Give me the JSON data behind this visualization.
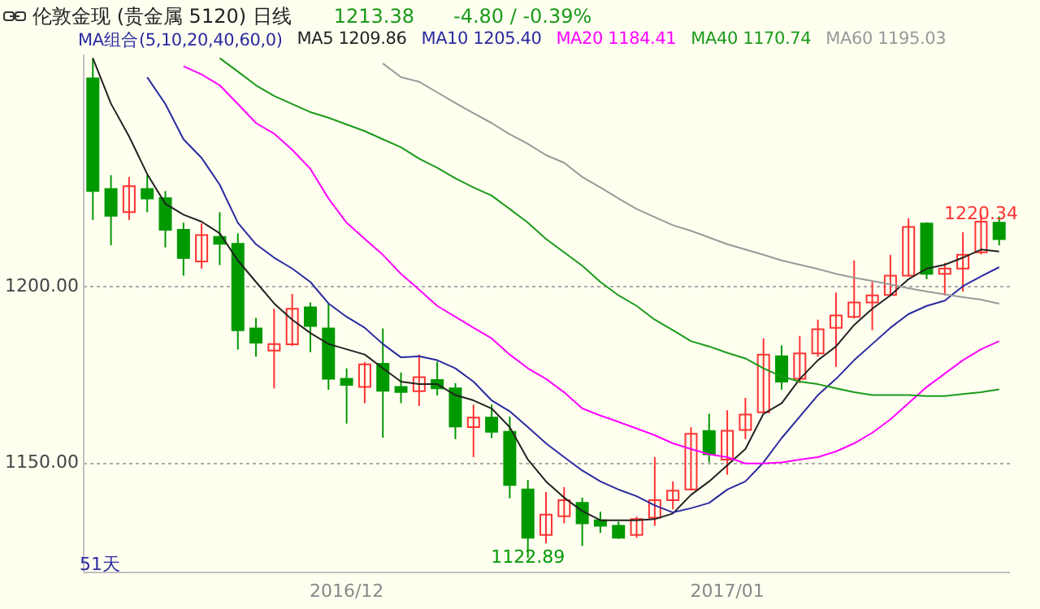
{
  "chart_data": {
    "type": "candlestick",
    "title": "伦敦金现 (贵金属 5120) 日线",
    "annotations": [
      "1213.38",
      "-4.80 / -0.39%",
      "MA组合(5,10,20,40,60,0)",
      "51天",
      {
        "text": "1122.89",
        "y": 1122.89
      },
      {
        "text": "1220.34",
        "y": 1220.34
      }
    ],
    "categories": [
      null,
      null,
      null,
      null,
      null,
      null,
      null,
      null,
      null,
      null,
      null,
      null,
      null,
      null,
      "2016/12",
      null,
      null,
      null,
      null,
      null,
      null,
      null,
      null,
      null,
      null,
      null,
      null,
      null,
      null,
      null,
      null,
      null,
      null,
      null,
      null,
      "2017/01",
      null,
      null,
      null,
      null,
      null,
      null,
      null,
      null,
      null,
      null,
      null,
      null,
      null,
      null,
      null
    ],
    "ohlc": [
      [
        1259,
        1264.7,
        1218.8,
        1227
      ],
      [
        1227.6,
        1231.5,
        1211.6,
        1220
      ],
      [
        1221,
        1231,
        1218.8,
        1228.4
      ],
      [
        1227.6,
        1231.5,
        1221,
        1224.9
      ],
      [
        1225,
        1227,
        1211,
        1216
      ],
      [
        1216,
        1218,
        1203,
        1208
      ],
      [
        1207,
        1217.8,
        1205,
        1214.5
      ],
      [
        1214,
        1221,
        1206,
        1212
      ],
      [
        1212,
        1215,
        1182,
        1187.5
      ],
      [
        1188,
        1191,
        1180,
        1184
      ],
      [
        1181.7,
        1193.6,
        1171,
        1183.6
      ],
      [
        1183.5,
        1197.8,
        1183,
        1193.6
      ],
      [
        1194,
        1195.4,
        1181.3,
        1188.7
      ],
      [
        1188,
        1195,
        1170.6,
        1173.7
      ],
      [
        1173.7,
        1176.7,
        1161,
        1172
      ],
      [
        1171.4,
        1178.5,
        1166.8,
        1177.8
      ],
      [
        1178,
        1188,
        1157,
        1170.3
      ],
      [
        1171.4,
        1175.5,
        1166.8,
        1170
      ],
      [
        1170.2,
        1180.6,
        1166,
        1174.2
      ],
      [
        1173.4,
        1178.6,
        1169,
        1171
      ],
      [
        1171,
        1172.5,
        1156.6,
        1160.2
      ],
      [
        1160,
        1166.4,
        1151.5,
        1162.7
      ],
      [
        1162.7,
        1166.4,
        1156.9,
        1158.7
      ],
      [
        1158.7,
        1163,
        1139.8,
        1143.6
      ],
      [
        1142.3,
        1145,
        1122.89,
        1128.6
      ],
      [
        1129.4,
        1141.6,
        1127,
        1135.2
      ],
      [
        1134.7,
        1143,
        1132.7,
        1139.3
      ],
      [
        1138.5,
        1140,
        1126.3,
        1132.7
      ],
      [
        1133.6,
        1136,
        1130,
        1132
      ],
      [
        1132,
        1133.2,
        1128.3,
        1128.6
      ],
      [
        1129.4,
        1134.6,
        1128.6,
        1133.9
      ],
      [
        1134.3,
        1151.5,
        1132,
        1139.3
      ],
      [
        1139.3,
        1144.6,
        1136.7,
        1142
      ],
      [
        1142.3,
        1160,
        1142,
        1158.1
      ],
      [
        1158.9,
        1163.8,
        1150,
        1152.3
      ],
      [
        1150.8,
        1164.8,
        1146.5,
        1159
      ],
      [
        1159.2,
        1168.3,
        1156.6,
        1163.6
      ],
      [
        1164.2,
        1185.2,
        1164,
        1180.6
      ],
      [
        1180.1,
        1183.2,
        1170.6,
        1172.9
      ],
      [
        1173.7,
        1185.9,
        1172.5,
        1180.9
      ],
      [
        1180.9,
        1190.5,
        1180,
        1187.8
      ],
      [
        1188.2,
        1198.2,
        1177.1,
        1191.7
      ],
      [
        1191.3,
        1207.3,
        1190.8,
        1195.4
      ],
      [
        1195.4,
        1201.2,
        1187.5,
        1197.4
      ],
      [
        1197.5,
        1208.9,
        1197.4,
        1203
      ],
      [
        1203,
        1219.3,
        1202.7,
        1216.8
      ],
      [
        1217.8,
        1218.1,
        1202,
        1203.5
      ],
      [
        1203.5,
        1206.6,
        1197.4,
        1205
      ],
      [
        1205,
        1215.3,
        1198.5,
        1208.9
      ],
      [
        1209.6,
        1220.34,
        1209,
        1218.3
      ],
      [
        1218,
        1219.8,
        1211.6,
        1213.38
      ]
    ],
    "colors": [
      "#009900",
      "#009900",
      "#ff3333",
      "#009900",
      "#009900",
      "#009900",
      "#ff3333",
      "#009900",
      "#009900",
      "#009900",
      "#ff3333",
      "#ff3333",
      "#009900",
      "#009900",
      "#009900",
      "#ff3333",
      "#009900",
      "#009900",
      "#ff3333",
      "#009900",
      "#009900",
      "#ff3333",
      "#009900",
      "#009900",
      "#009900",
      "#ff3333",
      "#ff3333",
      "#009900",
      "#009900",
      "#009900",
      "#ff3333",
      "#ff3333",
      "#ff3333",
      "#ff3333",
      "#009900",
      "#ff3333",
      "#ff3333",
      "#ff3333",
      "#009900",
      "#ff3333",
      "#ff3333",
      "#ff3333",
      "#ff3333",
      "#ff3333",
      "#ff3333",
      "#ff3333",
      "#009900",
      "#ff3333",
      "#ff3333",
      "#ff3333",
      "#009900"
    ],
    "series": [
      {
        "name": "MA5 1209.86",
        "type": "line",
        "color": "#222222",
        "values": [
          1264.7,
          1251.8,
          1242.5,
          1231.8,
          1223.4,
          1220.3,
          1218.3,
          1215,
          1207.3,
          1201.2,
          1195.1,
          1190.5,
          1186.7,
          1183.6,
          1182.1,
          1180.6,
          1176.7,
          1172.9,
          1172.2,
          1172.2,
          1169.1,
          1167.6,
          1165.3,
          1160,
          1150.8,
          1144.6,
          1140,
          1136.2,
          1133.6,
          1133.6,
          1133.6,
          1133.9,
          1135.5,
          1140.8,
          1144.6,
          1149.2,
          1153.8,
          1163.8,
          1166.8,
          1173.7,
          1179,
          1182.9,
          1189,
          1193.6,
          1197.4,
          1202,
          1205,
          1206.1,
          1208.1,
          1210.4,
          1209.86
        ]
      },
      {
        "name": "MA10 1205.40",
        "type": "line",
        "color": "#2a2aa0",
        "values": [
          null,
          null,
          null,
          1259.3,
          1251.7,
          1241.7,
          1236.4,
          1228.8,
          1218,
          1211.9,
          1208.1,
          1205,
          1201.2,
          1195.1,
          1191.3,
          1188.2,
          1183.6,
          1179.8,
          1180.1,
          1179,
          1176.7,
          1172.9,
          1167.6,
          1164.5,
          1160,
          1155.4,
          1151.5,
          1147.7,
          1144.6,
          1142.3,
          1140.4,
          1137.8,
          1135.8,
          1137,
          1138.5,
          1142.3,
          1144.6,
          1150,
          1156.9,
          1163,
          1169.1,
          1173.7,
          1179,
          1183.6,
          1188.2,
          1192.1,
          1194.4,
          1195.9,
          1200,
          1202.8,
          1205.4
        ]
      },
      {
        "name": "MA20 1184.41",
        "type": "line",
        "color": "#ff00ff",
        "values": [
          null,
          null,
          null,
          null,
          null,
          1262.4,
          1260.1,
          1257,
          1251.7,
          1246.3,
          1243.3,
          1238.7,
          1233.3,
          1224.9,
          1218,
          1213.4,
          1208.9,
          1203.5,
          1199,
          1194.4,
          1191.3,
          1188.2,
          1185.2,
          1180.6,
          1176.7,
          1173.7,
          1169.9,
          1165.3,
          1163.3,
          1161.5,
          1159.6,
          1157.7,
          1155.4,
          1153.8,
          1152.3,
          1151.5,
          1149.7,
          1149.7,
          1150,
          1150.8,
          1151.5,
          1153.1,
          1155.4,
          1158.4,
          1162.2,
          1166.8,
          1171.4,
          1175.2,
          1179,
          1182.1,
          1184.41
        ]
      },
      {
        "name": "MA40 1170.74",
        "type": "line",
        "color": "#1a9a1a",
        "values": [
          null,
          null,
          null,
          null,
          null,
          null,
          null,
          1264.7,
          1260.9,
          1257,
          1254,
          1251.7,
          1249.4,
          1247.8,
          1245.9,
          1244,
          1241.7,
          1239.4,
          1236.2,
          1233.6,
          1230.6,
          1228,
          1225.7,
          1221.9,
          1218,
          1213.4,
          1209.6,
          1205.8,
          1201.2,
          1197.4,
          1194.4,
          1190.5,
          1187.5,
          1184.4,
          1182.9,
          1181.1,
          1179.5,
          1176.7,
          1174.4,
          1172.9,
          1172.2,
          1171,
          1169.9,
          1169.1,
          1169.1,
          1169.1,
          1168.8,
          1168.8,
          1169.4,
          1169.9,
          1170.74
        ]
      },
      {
        "name": "MA60 1195.03",
        "type": "line",
        "color": "#999999",
        "values": [
          null,
          null,
          null,
          null,
          null,
          null,
          null,
          null,
          null,
          null,
          null,
          null,
          null,
          null,
          null,
          null,
          1263.2,
          1259.3,
          1258,
          1255,
          1252,
          1249.1,
          1246.3,
          1243.1,
          1240.4,
          1237.2,
          1235,
          1231,
          1228,
          1224.9,
          1221.9,
          1219.6,
          1217.3,
          1215.7,
          1213.8,
          1211.9,
          1210.4,
          1208.9,
          1207.3,
          1206.1,
          1204.9,
          1203.5,
          1202.4,
          1201.5,
          1200.5,
          1199.4,
          1198.5,
          1197.7,
          1196.9,
          1196.2,
          1195.03
        ]
      }
    ],
    "ylim": [
      1119,
      1266
    ],
    "yticks": [
      {
        "value": 1150,
        "label": "1150.00"
      },
      {
        "value": 1200,
        "label": "1200.00"
      }
    ],
    "grid": "y",
    "legend": "top"
  }
}
